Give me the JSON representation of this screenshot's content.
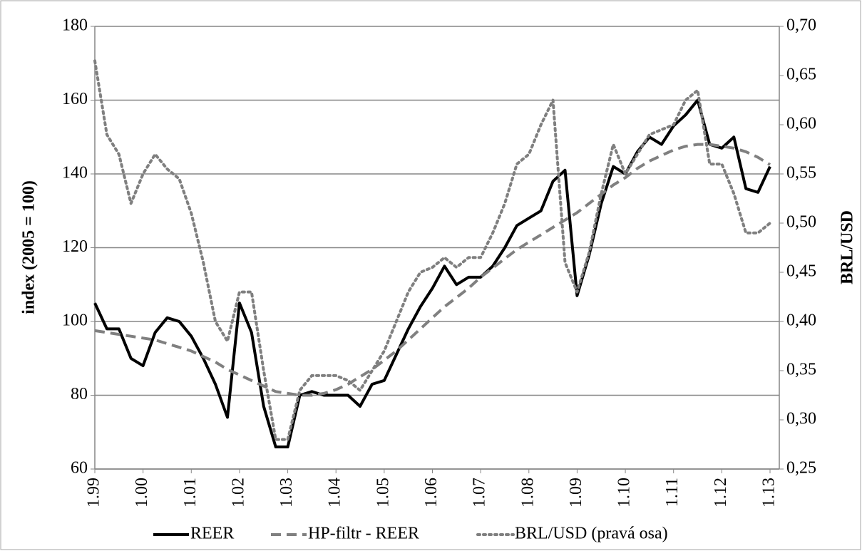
{
  "chart_data": {
    "type": "line",
    "categories": [
      "1.99",
      null,
      null,
      null,
      "1.00",
      null,
      null,
      null,
      "1.01",
      null,
      null,
      null,
      "1.02",
      null,
      null,
      null,
      "1.03",
      null,
      null,
      null,
      "1.04",
      null,
      null,
      null,
      "1.05",
      null,
      null,
      null,
      "1.06",
      null,
      null,
      null,
      "1.07",
      null,
      null,
      null,
      "1.08",
      null,
      null,
      null,
      "1.09",
      null,
      null,
      null,
      "1.10",
      null,
      null,
      null,
      "1.11",
      null,
      null,
      null,
      "1.12",
      null,
      null,
      null,
      "1.13"
    ],
    "series": [
      {
        "name": "REER",
        "color": "#000000",
        "style": "solid",
        "values": [
          105,
          98,
          98,
          90,
          88,
          97,
          101,
          100,
          96,
          90,
          83,
          74,
          105,
          97,
          77,
          66,
          66,
          80,
          81,
          80,
          80,
          80,
          77,
          83,
          84,
          91,
          98,
          104,
          109,
          115,
          110,
          112,
          112,
          115,
          120,
          126,
          128,
          130,
          138,
          141,
          107,
          118,
          132,
          142,
          140,
          146,
          150,
          148,
          153,
          156,
          160,
          148,
          147,
          150,
          136,
          135,
          142
        ]
      },
      {
        "name": "HP-filtr - REER",
        "color": "#808080",
        "style": "dashed",
        "values": [
          97.5,
          97,
          96.5,
          96,
          95.5,
          95,
          94,
          93,
          92,
          90.5,
          89,
          87,
          85.5,
          84,
          82.5,
          81,
          80.5,
          80,
          80,
          80.5,
          81.5,
          83,
          85,
          87,
          89.5,
          92,
          95,
          98,
          101,
          104,
          106.5,
          109,
          112,
          114.5,
          117,
          119.5,
          121.5,
          123.5,
          125.5,
          127.5,
          129.5,
          132,
          134.5,
          137,
          139,
          141.5,
          143.5,
          145,
          146.5,
          147.5,
          148,
          148,
          147.5,
          147,
          146,
          144.5,
          142.5
        ]
      },
      {
        "name": "BRL/USD (pravá osa)",
        "color": "#7f7f7f",
        "style": "dotted",
        "axis": "y2",
        "values": [
          0.665,
          0.59,
          0.57,
          0.52,
          0.55,
          0.57,
          0.555,
          0.545,
          0.51,
          0.46,
          0.4,
          0.38,
          0.43,
          0.43,
          0.35,
          0.28,
          0.28,
          0.33,
          0.345,
          0.345,
          0.345,
          0.34,
          0.33,
          0.35,
          0.37,
          0.4,
          0.43,
          0.45,
          0.455,
          0.465,
          0.455,
          0.465,
          0.465,
          0.49,
          0.52,
          0.56,
          0.57,
          0.6,
          0.625,
          0.46,
          0.43,
          0.47,
          0.53,
          0.58,
          0.55,
          0.57,
          0.59,
          0.595,
          0.6,
          0.625,
          0.635,
          0.56,
          0.56,
          0.53,
          0.49,
          0.49,
          0.5
        ]
      }
    ],
    "y_label": "index (2005 = 100)",
    "y2_label": "BRL/USD",
    "ylim": [
      60,
      180
    ],
    "yticks": [
      60,
      80,
      100,
      120,
      140,
      160,
      180
    ],
    "y2lim": [
      0.25,
      0.7
    ],
    "y2ticks": [
      {
        "value": 0.25,
        "label": "0,25"
      },
      {
        "value": 0.3,
        "label": "0,30"
      },
      {
        "value": 0.35,
        "label": "0,35"
      },
      {
        "value": 0.4,
        "label": "0,40"
      },
      {
        "value": 0.45,
        "label": "0,45"
      },
      {
        "value": 0.5,
        "label": "0,50"
      },
      {
        "value": 0.55,
        "label": "0,55"
      },
      {
        "value": 0.6,
        "label": "0,60"
      },
      {
        "value": 0.65,
        "label": "0,65"
      },
      {
        "value": 0.7,
        "label": "0,70"
      }
    ],
    "grid": true,
    "legend": "bottom"
  }
}
